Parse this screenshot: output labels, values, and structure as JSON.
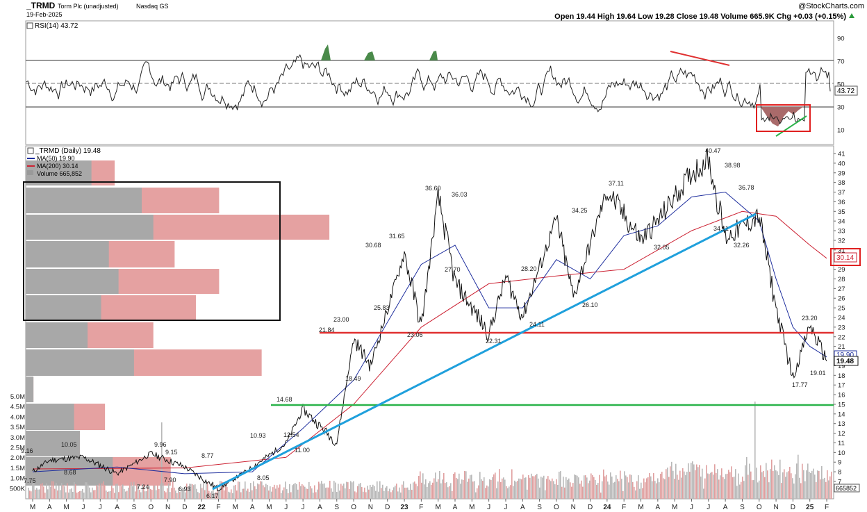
{
  "header": {
    "symbol": "_TRMD",
    "name": "Torm Plc (unadjusted)",
    "exchange": "Nasdaq GS",
    "date": "19-Feb-2025",
    "copyright": "@StockCharts.com",
    "ohlc": "Open 19.44  High 19.64  Low 19.28  Close 19.48  Volume 665.9K  Chg +0.03 (+0.15%)",
    "ohlc_up_icon": "triangle-up-icon"
  },
  "colors": {
    "price": "#111111",
    "ma50": "#1f2f9e",
    "ma200": "#cc2233",
    "volume_up": "#b8b8b8",
    "volume_down": "#e0a0a0",
    "vbp_gray": "#a8a8a8",
    "vbp_red": "#e5a1a1",
    "support_red": "#e03030",
    "support_green": "#2ab34a",
    "trendline_blue": "#1fa0dc",
    "rsi_line": "#222222"
  },
  "rsi_panel": {
    "label": "RSI(14) 43.72",
    "last_value": "43.72",
    "y_ticks": [
      "90",
      "70",
      "50",
      "30",
      "10"
    ],
    "ylim": [
      0,
      100
    ],
    "levels": [
      70,
      50,
      30
    ]
  },
  "price_panel": {
    "legend": {
      "title": "_TRMD (Daily) 19.48",
      "ma50": "MA(50) 19.90",
      "ma200": "MA(200) 30.14",
      "volume": "Volume 665,852"
    },
    "y_ticks": [
      "41",
      "40",
      "39",
      "38",
      "37",
      "36",
      "35",
      "34",
      "33",
      "32",
      "31",
      "30",
      "29",
      "28",
      "27",
      "26",
      "25",
      "24",
      "23",
      "22",
      "21",
      "20",
      "19",
      "18",
      "17",
      "16",
      "15",
      "14",
      "13",
      "12",
      "11",
      "10",
      "9",
      "8",
      "7"
    ],
    "ma50_tag": "19.90",
    "last_price_tag": "19.48",
    "ma200_tag": "30.14",
    "volume_tag": "665852",
    "volume_axis": [
      "5.0M",
      "4.5M",
      "4.0M",
      "3.5M",
      "3.0M",
      "2.5M",
      "2.0M",
      "1.5M",
      "1.0M",
      "500K"
    ]
  },
  "x_axis": [
    "M",
    "A",
    "M",
    "J",
    "J",
    "A",
    "S",
    "O",
    "N",
    "D",
    "22",
    "F",
    "M",
    "A",
    "M",
    "J",
    "J",
    "A",
    "S",
    "O",
    "N",
    "D",
    "23",
    "F",
    "M",
    "A",
    "M",
    "J",
    "J",
    "A",
    "S",
    "O",
    "N",
    "D",
    "24",
    "F",
    "M",
    "A",
    "M",
    "J",
    "J",
    "A",
    "S",
    "O",
    "N",
    "D",
    "25",
    "F"
  ],
  "chart_data": {
    "type": "line",
    "title": "_TRMD (Daily) 19.48",
    "ylim": [
      6,
      41.5
    ],
    "series": [
      {
        "name": "_TRMD",
        "x": [
          "Mar-21",
          "Apr-21",
          "Jun-21",
          "Aug-21",
          "Oct-21",
          "Dec-21",
          "Feb-22",
          "Apr-22",
          "Jun-22",
          "Jul-22",
          "Sep-22",
          "Oct-22",
          "Nov-22",
          "Jan-23",
          "Feb-23",
          "Mar-23",
          "Apr-23",
          "Jun-23",
          "Jul-23",
          "Aug-23",
          "Oct-23",
          "Nov-23",
          "Jan-24",
          "Mar-24",
          "Apr-24",
          "Jun-24",
          "Jul-24",
          "Aug-24",
          "Oct-24",
          "Nov-24",
          "Dec-24",
          "Jan-25",
          "Feb-25"
        ],
        "values": [
          8.0,
          9.2,
          9.5,
          7.8,
          9.9,
          8.5,
          6.17,
          8.5,
          10.93,
          14.5,
          11.0,
          21.8,
          19.0,
          30.68,
          23.06,
          36.6,
          27.7,
          22.31,
          28.2,
          24.11,
          34.25,
          26.1,
          37.11,
          32.05,
          34.0,
          38.98,
          40.47,
          32.26,
          34.5,
          25.0,
          17.77,
          23.2,
          19.48
        ]
      },
      {
        "name": "MA(50)",
        "x": [
          "Mar-21",
          "Aug-21",
          "Dec-21",
          "Apr-22",
          "Jul-22",
          "Oct-22",
          "Dec-22",
          "Feb-23",
          "Apr-23",
          "Jun-23",
          "Aug-23",
          "Oct-23",
          "Dec-23",
          "Feb-24",
          "Apr-24",
          "Jun-24",
          "Aug-24",
          "Oct-24",
          "Nov-24",
          "Dec-24",
          "Jan-25",
          "Feb-25"
        ],
        "values": [
          8.0,
          8.5,
          7.8,
          8.0,
          12.5,
          17.5,
          23.5,
          29.5,
          31.5,
          25.0,
          25.0,
          30.0,
          28.0,
          32.5,
          33.5,
          36.5,
          37.0,
          34.0,
          28.0,
          23.0,
          21.0,
          19.9
        ]
      },
      {
        "name": "MA(200)",
        "x": [
          "Mar-21",
          "Dec-21",
          "Jun-22",
          "Oct-22",
          "Feb-23",
          "Jun-23",
          "Oct-23",
          "Feb-24",
          "Jun-24",
          "Sep-24",
          "Nov-24",
          "Jan-25",
          "Feb-25"
        ],
        "values": [
          8.3,
          8.4,
          9.5,
          15.0,
          23.0,
          27.5,
          28.3,
          29.0,
          33.0,
          35.0,
          34.5,
          31.5,
          30.14
        ]
      }
    ],
    "annotations": [
      "9.16",
      "7.75",
      "10.05",
      "8.68",
      "7.24",
      "9.96",
      "9.15",
      "7.90",
      "6.93",
      "8.77",
      "6.17",
      "8.05",
      "10.93",
      "14.68",
      "12.54",
      "11.00",
      "21.84",
      "23.00",
      "18.49",
      "30.68",
      "25.83",
      "31.65",
      "23.06",
      "36.60",
      "27.70",
      "36.03",
      "22.31",
      "28.20",
      "24.11",
      "34.25",
      "26.10",
      "37.11",
      "32.05",
      "40.47",
      "38.98",
      "36.78",
      "34.11",
      "32.26",
      "23.20",
      "19.01",
      "17.77"
    ],
    "support_lines": [
      {
        "label": "red",
        "value": 22.5
      },
      {
        "label": "green",
        "value": 14.9
      }
    ],
    "trendline": {
      "from": [
        "Feb-22",
        6.2
      ],
      "to": [
        "Sep-24",
        34.8
      ]
    },
    "volume_by_price": [
      {
        "gray": 0.34,
        "total": 0.46
      },
      {
        "gray": 0.6,
        "total": 1.0
      },
      {
        "gray": 0.66,
        "total": 1.57
      },
      {
        "gray": 0.43,
        "total": 0.77
      },
      {
        "gray": 0.48,
        "total": 1.0
      },
      {
        "gray": 0.39,
        "total": 0.88
      },
      {
        "gray": 0.32,
        "total": 0.66
      },
      {
        "gray": 0.56,
        "total": 1.22
      },
      {
        "gray": 0.04,
        "total": 0.04
      },
      {
        "gray": 0.25,
        "total": 0.41
      },
      {
        "gray": 0.28,
        "total": 0.28
      },
      {
        "gray": 0.45,
        "total": 0.75
      }
    ]
  }
}
